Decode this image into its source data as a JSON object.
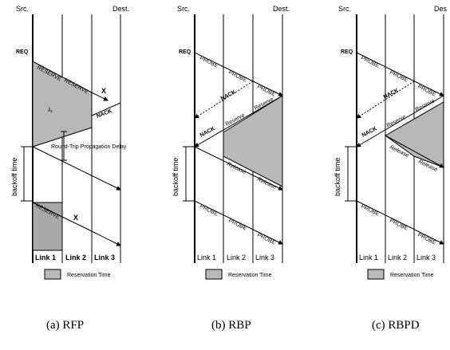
{
  "labels": {
    "src": "Src.",
    "dest": "Dest.",
    "dest_cut": "Des",
    "req": "REQ",
    "reserve": "RESERVE",
    "probe": "PROBE",
    "nack": "NACK",
    "reserve_lc": "Reserve",
    "release": "Release",
    "x": "X",
    "lambda": "λ₁",
    "rtt": "Round-Trip Propagation Delay",
    "backoff": "backoff time",
    "link1": "Link 1",
    "link2": "Link 2",
    "link3": "Link 3",
    "legend": "Reservation Time"
  },
  "captions": {
    "a": "(a) RFP",
    "b": "(b) RBP",
    "c": "(c) RBPD"
  },
  "colors": {
    "shade": "#b8b8b8",
    "line": "#000000"
  }
}
